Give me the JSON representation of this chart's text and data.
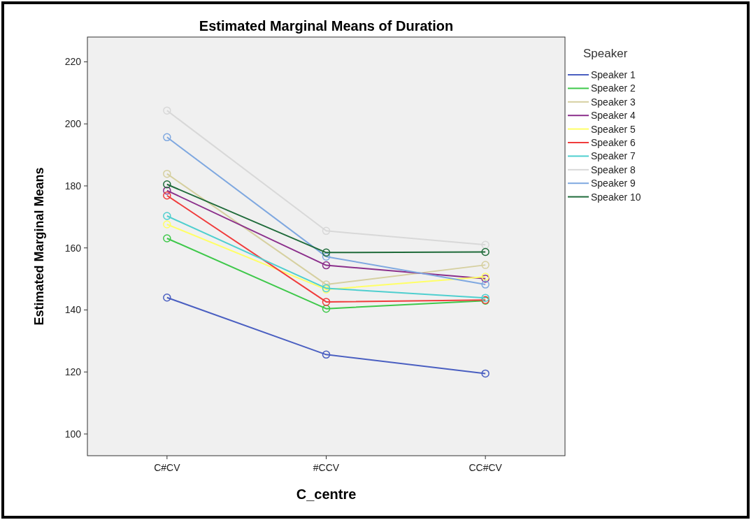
{
  "chart_data": {
    "type": "line",
    "title": "Estimated Marginal Means of Duration",
    "xlabel": "C_centre",
    "ylabel": "Estimated Marginal Means",
    "legend_title": "Speaker",
    "categories": [
      "C#CV",
      "#CCV",
      "CC#CV"
    ],
    "ylim": [
      93,
      228
    ],
    "yticks": [
      100,
      120,
      140,
      160,
      180,
      200,
      220
    ],
    "grid": false,
    "legend": "right",
    "marker": "circle",
    "line_style": "solid",
    "series": [
      {
        "name": "Speaker 1",
        "color": "#4a5fc1",
        "values": [
          144.0,
          125.6,
          119.5
        ]
      },
      {
        "name": "Speaker 2",
        "color": "#3ec84a",
        "values": [
          163.1,
          140.4,
          143.0
        ]
      },
      {
        "name": "Speaker 3",
        "color": "#d6d0a0",
        "values": [
          183.9,
          148.2,
          154.5
        ]
      },
      {
        "name": "Speaker 4",
        "color": "#8b2f8b",
        "values": [
          178.5,
          154.4,
          150.1
        ]
      },
      {
        "name": "Speaker 5",
        "color": "#ffff66",
        "values": [
          167.6,
          146.6,
          150.7
        ]
      },
      {
        "name": "Speaker 6",
        "color": "#f03c3c",
        "values": [
          176.9,
          142.6,
          143.2
        ]
      },
      {
        "name": "Speaker 7",
        "color": "#4fcfcf",
        "values": [
          170.3,
          147.0,
          143.9
        ]
      },
      {
        "name": "Speaker 8",
        "color": "#d8d8d8",
        "values": [
          204.3,
          165.5,
          161.0
        ]
      },
      {
        "name": "Speaker 9",
        "color": "#7fa8e0",
        "values": [
          195.7,
          157.2,
          148.2
        ]
      },
      {
        "name": "Speaker 10",
        "color": "#1f6b3a",
        "values": [
          180.5,
          158.5,
          158.7
        ]
      }
    ]
  }
}
